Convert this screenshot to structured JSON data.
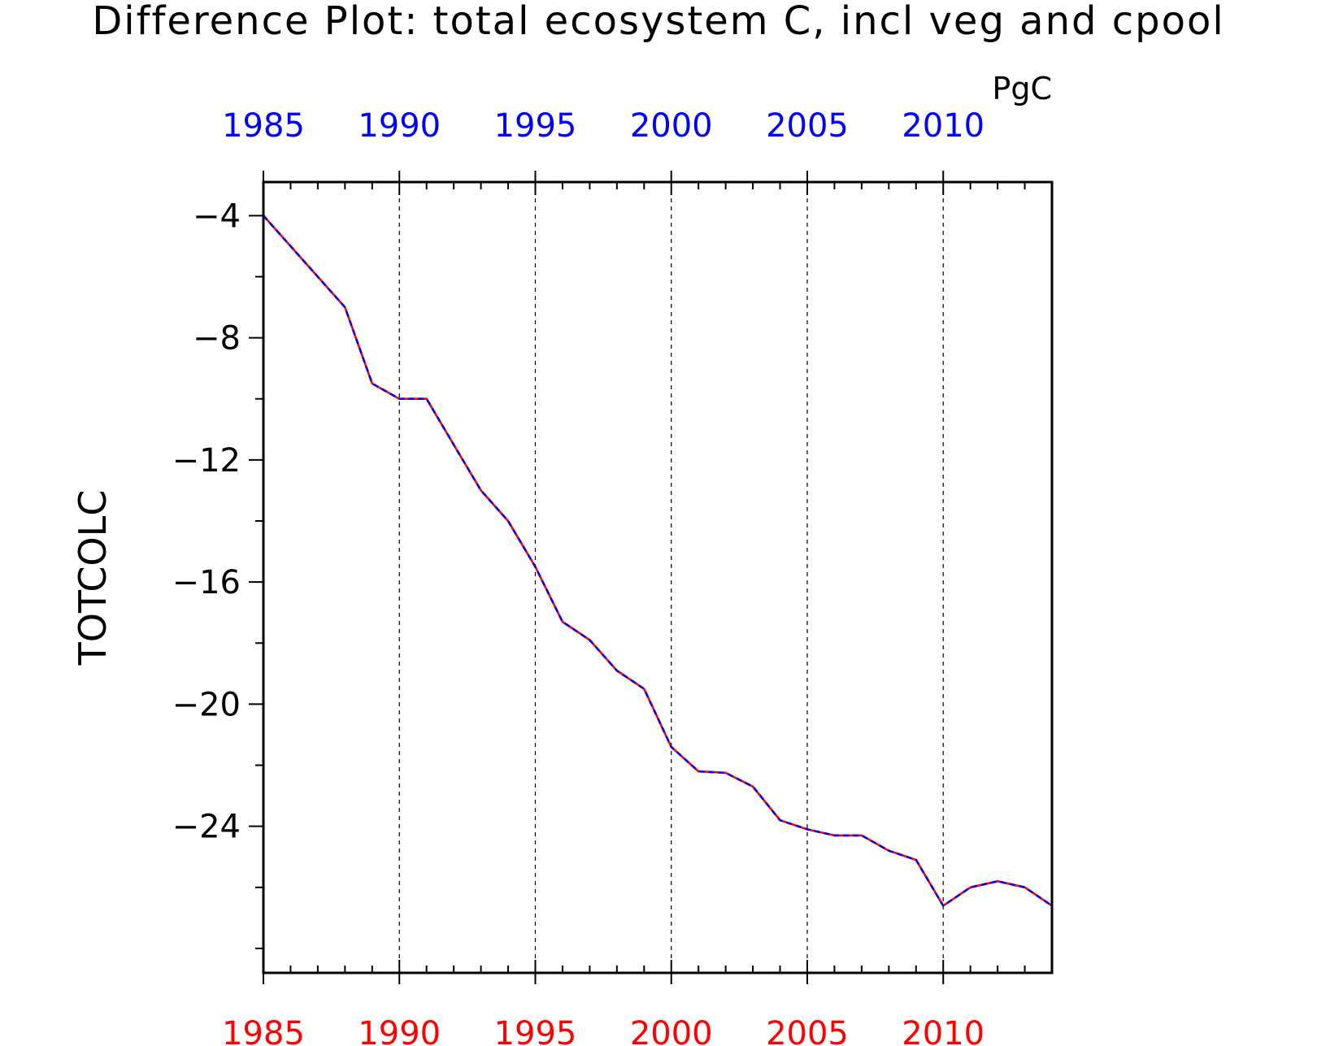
{
  "chart_data": {
    "type": "line",
    "title": "Difference Plot: total ecosystem C, incl veg and cpool",
    "ylabel": "TOTCOLC",
    "units": "PgC",
    "xlim": [
      1985,
      2014
    ],
    "ylim": [
      -28.8,
      -2.9
    ],
    "x_ticks": [
      1985,
      1990,
      1995,
      2000,
      2005,
      2010
    ],
    "x_tick_labels": [
      "1985",
      "1990",
      "1995",
      "2000",
      "2005",
      "2010"
    ],
    "y_ticks": [
      -4,
      -8,
      -12,
      -16,
      -20,
      -24
    ],
    "y_tick_labels": [
      "−4",
      "−8",
      "−12",
      "−16",
      "−20",
      "−24"
    ],
    "grid": "vertical dashed at major x ticks",
    "colors": {
      "top_axis_labels": "#0000ff",
      "bottom_axis_labels": "#ff0000",
      "series_a": "#ff0000",
      "series_b": "#0000ff",
      "axes": "#000000"
    },
    "x": [
      1985,
      1986,
      1987,
      1988,
      1989,
      1990,
      1991,
      1992,
      1993,
      1994,
      1995,
      1996,
      1997,
      1998,
      1999,
      2000,
      2001,
      2002,
      2003,
      2004,
      2005,
      2006,
      2007,
      2008,
      2009,
      2010,
      2011,
      2012,
      2013,
      2014
    ],
    "series": [
      {
        "line_style": "solid",
        "color": "#ff0000",
        "values": [
          -4.0,
          -5.0,
          -6.0,
          -7.0,
          -9.5,
          -10.0,
          -10.0,
          -11.5,
          -13.0,
          -14.0,
          -15.5,
          -17.3,
          -17.9,
          -18.9,
          -19.5,
          -21.4,
          -22.2,
          -22.25,
          -22.7,
          -23.8,
          -24.1,
          -24.3,
          -24.3,
          -24.8,
          -25.1,
          -26.6,
          -26.0,
          -25.8,
          -26.0,
          -26.6
        ]
      },
      {
        "line_style": "dashed",
        "color": "#0000ff",
        "values": [
          -4.0,
          -5.0,
          -6.0,
          -7.0,
          -9.5,
          -10.0,
          -10.0,
          -11.5,
          -13.0,
          -14.0,
          -15.5,
          -17.3,
          -17.9,
          -18.9,
          -19.5,
          -21.4,
          -22.2,
          -22.25,
          -22.7,
          -23.8,
          -24.1,
          -24.3,
          -24.3,
          -24.8,
          -25.1,
          -26.6,
          -26.0,
          -25.8,
          -26.0,
          -26.6
        ]
      }
    ]
  }
}
